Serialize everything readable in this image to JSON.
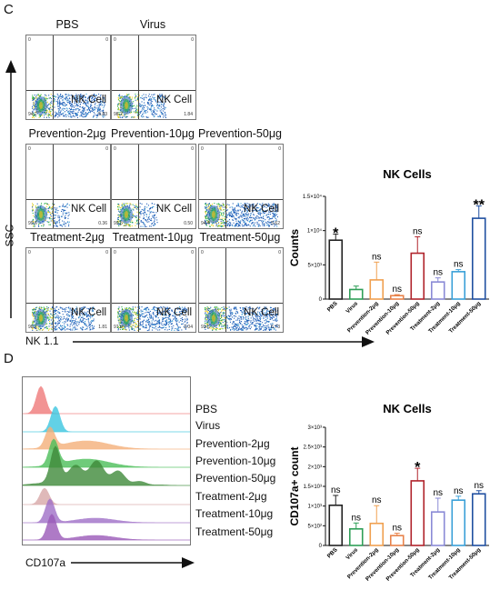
{
  "panel_c": {
    "letter": "C",
    "y_axis_label": "SSC",
    "x_axis_label": "NK 1.1",
    "gate_label": "NK Cell",
    "plots": [
      {
        "title": "PBS",
        "q_ul": "0",
        "q_ur": "0",
        "q_ll": "94.2",
        "q_lr": "5.83"
      },
      {
        "title": "Virus",
        "q_ul": "0",
        "q_ur": "0",
        "q_ll": "98.2",
        "q_lr": "1.84"
      },
      {
        "title": "Prevention-2μg",
        "q_ul": "0",
        "q_ur": "0",
        "q_ll": "99.6",
        "q_lr": "0.36"
      },
      {
        "title": "Prevention-10μg",
        "q_ul": "0",
        "q_ur": "0",
        "q_ll": "99.5",
        "q_lr": "0.50"
      },
      {
        "title": "Prevention-50μg",
        "q_ul": "0",
        "q_ur": "0",
        "q_ll": "94.4",
        "q_lr": "5.62"
      },
      {
        "title": "Treatment-2μg",
        "q_ul": "0",
        "q_ur": "0",
        "q_ll": "98.2",
        "q_lr": "1.81"
      },
      {
        "title": "Treatment-10μg",
        "q_ul": "0",
        "q_ur": "0",
        "q_ll": "97.0",
        "q_lr": "3.04"
      },
      {
        "title": "Treatment-50μg",
        "q_ul": "0",
        "q_ur": "0",
        "q_ll": "93.3",
        "q_lr": "6.73"
      }
    ]
  },
  "panel_d": {
    "letter": "D",
    "x_axis_label": "CD107a",
    "histogram_labels": [
      "PBS",
      "Virus",
      "Prevention-2μg",
      "Prevention-10μg",
      "Prevention-50μg",
      "Treatment-2μg",
      "Treatment-10μg",
      "Treatment-50μg"
    ]
  },
  "colors": {
    "PBS": "#222222",
    "Virus": "#2e9e57",
    "Prevention-2μg": "#f0a050",
    "Prevention-10μg": "#e8824a",
    "Prevention-50μg": "#b0242c",
    "Treatment-2μg": "#8a8ad6",
    "Treatment-10μg": "#3aa0d8",
    "Treatment-50μg": "#1f4fa0"
  },
  "chart_data": [
    {
      "type": "bar",
      "title": "NK Cells",
      "ylabel": "Counts",
      "categories": [
        "PBS",
        "Virus",
        "Prevention-2μg",
        "Prevention-10μg",
        "Prevention-50μg",
        "Treatment-2μg",
        "Treatment-10μg",
        "Treatment-50μg"
      ],
      "values": [
        8600,
        1400,
        2800,
        500,
        6700,
        2500,
        4000,
        11800
      ],
      "errors": [
        900,
        500,
        2600,
        150,
        2400,
        600,
        300,
        1800
      ],
      "annotations": [
        "*",
        "",
        "ns",
        "ns",
        "ns",
        "ns",
        "ns",
        "**"
      ],
      "ylim": [
        0,
        15000
      ],
      "yticks": [
        0,
        5000,
        10000,
        15000
      ],
      "ytick_labels": [
        "0",
        "5×10³",
        "1×10⁴",
        "1.5×10⁴"
      ],
      "grid": false
    },
    {
      "type": "bar",
      "title": "NK Cells",
      "ylabel": "CD107a+ count",
      "categories": [
        "PBS",
        "Virus",
        "Prevention-2μg",
        "Prevention-10μg",
        "Prevention-50μg",
        "Treatment-2μg",
        "Treatment-10μg",
        "Treatment-50μg"
      ],
      "values": [
        1020,
        420,
        560,
        250,
        1640,
        850,
        1150,
        1310
      ],
      "errors": [
        250,
        150,
        450,
        60,
        320,
        350,
        100,
        80
      ],
      "annotations": [
        "ns",
        "ns",
        "ns",
        "ns",
        "*",
        "ns",
        "ns",
        "ns"
      ],
      "ylim": [
        0,
        3000
      ],
      "yticks": [
        0,
        500,
        1000,
        1500,
        2000,
        2500,
        3000
      ],
      "ytick_labels": [
        "0",
        "5×10²",
        "1×10³",
        "1.5×10³",
        "2×10³",
        "2.5×10³",
        "3×10³"
      ],
      "grid": false
    }
  ]
}
